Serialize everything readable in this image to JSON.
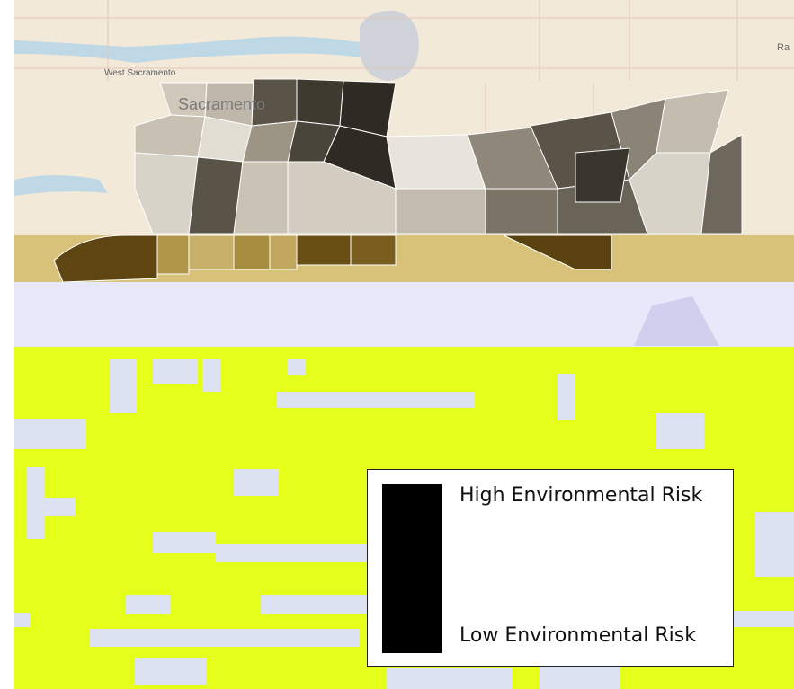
{
  "map": {
    "place_labels": {
      "west_sacramento": "West Sacramento",
      "sacramento": "Sacramento",
      "ra": "Ra"
    },
    "colors": {
      "basemap": "#f2e9d8",
      "river": "#bfd8e6",
      "glitch_yellow": "#e6ff1a",
      "glitch_lavender": "#e8e8fb",
      "risk_high": "#2f2a22",
      "risk_low": "#d8d3c8",
      "band_brown": "#6a4f14"
    }
  },
  "legend": {
    "high_label": "High Environmental Risk",
    "low_label": "Low Environmental Risk",
    "swatch_color": "#000000"
  }
}
